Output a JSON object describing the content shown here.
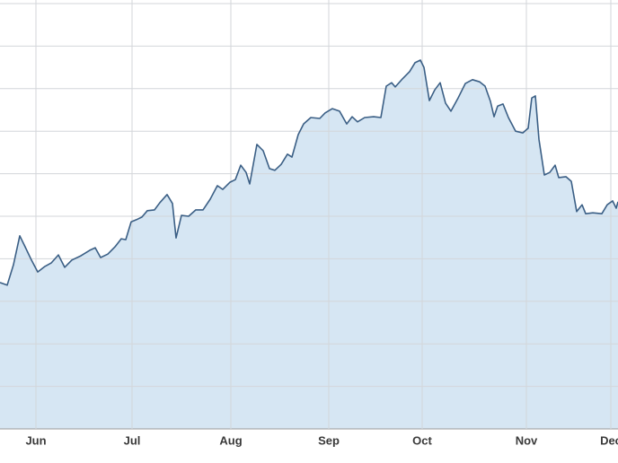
{
  "chart_data": {
    "type": "area",
    "x": [
      0,
      8,
      15,
      22,
      28,
      35,
      42,
      50,
      57,
      65,
      72,
      80,
      90,
      100,
      106,
      112,
      120,
      128,
      135,
      140,
      146,
      152,
      158,
      164,
      172,
      178,
      186,
      192,
      196,
      202,
      210,
      218,
      226,
      234,
      242,
      248,
      256,
      262,
      268,
      274,
      278,
      286,
      293,
      300,
      306,
      313,
      320,
      325,
      332,
      338,
      346,
      356,
      362,
      370,
      378,
      386,
      392,
      398,
      406,
      416,
      424,
      430,
      436,
      440,
      448,
      456,
      462,
      468,
      472,
      478,
      484,
      490,
      496,
      502,
      510,
      518,
      526,
      534,
      540,
      546,
      550,
      554,
      560,
      566,
      574,
      582,
      588,
      592,
      596,
      600,
      606,
      612,
      618,
      622,
      630,
      636,
      642,
      648,
      652,
      660,
      670,
      676,
      682,
      686,
      688
    ],
    "series": [
      {
        "color": "#3b5f85",
        "values": [
          34.4,
          33.8,
          38.6,
          45.4,
          42.8,
          39.7,
          36.9,
          38.2,
          39.0,
          40.9,
          38.0,
          39.7,
          40.7,
          42.0,
          42.6,
          40.3,
          41.1,
          42.8,
          44.7,
          44.5,
          48.7,
          49.2,
          49.8,
          51.3,
          51.5,
          53.2,
          55.1,
          53.0,
          44.9,
          50.2,
          50.0,
          51.5,
          51.5,
          54.0,
          57.2,
          56.3,
          58.0,
          58.6,
          62.0,
          60.3,
          57.6,
          66.9,
          65.4,
          61.2,
          60.8,
          62.2,
          64.6,
          63.9,
          69.2,
          71.7,
          73.2,
          73.0,
          74.3,
          75.3,
          74.7,
          71.7,
          73.4,
          72.2,
          73.2,
          73.4,
          73.2,
          80.6,
          81.4,
          80.4,
          82.3,
          84.0,
          86.1,
          86.7,
          85.0,
          77.2,
          79.7,
          81.4,
          76.6,
          74.7,
          77.8,
          81.2,
          82.1,
          81.6,
          80.6,
          77.0,
          73.4,
          75.9,
          76.4,
          73.2,
          70.0,
          69.6,
          70.7,
          77.8,
          78.3,
          68.1,
          59.7,
          60.3,
          62.0,
          59.1,
          59.3,
          58.2,
          51.1,
          52.7,
          50.6,
          50.8,
          50.6,
          52.7,
          53.6,
          51.9,
          53.4
        ]
      }
    ],
    "fill_color": "#d6e6f3",
    "xlim": [
      0,
      688
    ],
    "xticks": [
      {
        "value": 40,
        "label": "Jun"
      },
      {
        "value": 147,
        "label": "Jul"
      },
      {
        "value": 257,
        "label": "Aug"
      },
      {
        "value": 366,
        "label": "Sep"
      },
      {
        "value": 470,
        "label": "Oct"
      },
      {
        "value": 586,
        "label": "Nov"
      },
      {
        "value": 680,
        "label": "Dec"
      }
    ],
    "ylim": [
      0,
      100
    ],
    "yticks": [
      0,
      10,
      20,
      30,
      40,
      50,
      60,
      70,
      80,
      90,
      100
    ],
    "grid": true
  }
}
